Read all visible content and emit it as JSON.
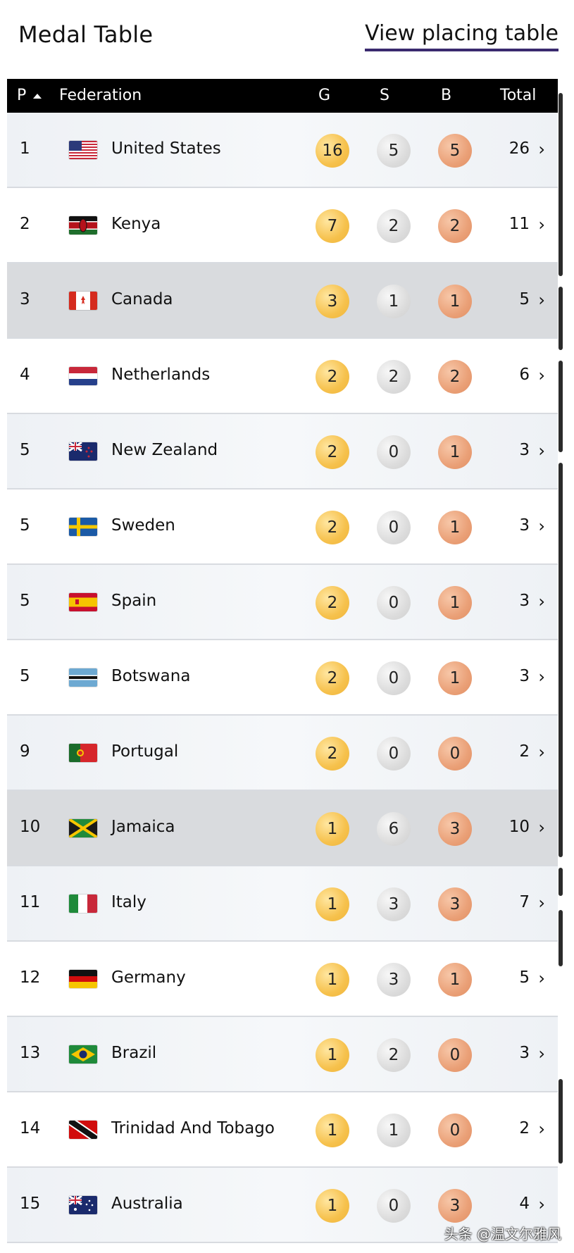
{
  "header": {
    "title": "Medal Table",
    "link": "View placing table"
  },
  "table": {
    "columns": [
      "P",
      "Federation",
      "G",
      "S",
      "B",
      "Total"
    ],
    "rows": [
      {
        "p": "1",
        "name": "United States",
        "flag": "us",
        "g": "16",
        "s": "5",
        "b": "5",
        "total": "26",
        "bg": "tint"
      },
      {
        "p": "2",
        "name": "Kenya",
        "flag": "ke",
        "g": "7",
        "s": "2",
        "b": "2",
        "total": "11",
        "bg": "white"
      },
      {
        "p": "3",
        "name": "Canada",
        "flag": "ca",
        "g": "3",
        "s": "1",
        "b": "1",
        "total": "5",
        "bg": "hl"
      },
      {
        "p": "4",
        "name": "Netherlands",
        "flag": "nl",
        "g": "2",
        "s": "2",
        "b": "2",
        "total": "6",
        "bg": "white"
      },
      {
        "p": "5",
        "name": "New Zealand",
        "flag": "nz",
        "g": "2",
        "s": "0",
        "b": "1",
        "total": "3",
        "bg": "tint"
      },
      {
        "p": "5",
        "name": "Sweden",
        "flag": "se",
        "g": "2",
        "s": "0",
        "b": "1",
        "total": "3",
        "bg": "white"
      },
      {
        "p": "5",
        "name": "Spain",
        "flag": "es",
        "g": "2",
        "s": "0",
        "b": "1",
        "total": "3",
        "bg": "tint"
      },
      {
        "p": "5",
        "name": "Botswana",
        "flag": "bw",
        "g": "2",
        "s": "0",
        "b": "1",
        "total": "3",
        "bg": "white"
      },
      {
        "p": "9",
        "name": "Portugal",
        "flag": "pt",
        "g": "2",
        "s": "0",
        "b": "0",
        "total": "2",
        "bg": "tint"
      },
      {
        "p": "10",
        "name": "Jamaica",
        "flag": "jm",
        "g": "1",
        "s": "6",
        "b": "3",
        "total": "10",
        "bg": "hl"
      },
      {
        "p": "11",
        "name": "Italy",
        "flag": "it",
        "g": "1",
        "s": "3",
        "b": "3",
        "total": "7",
        "bg": "tint"
      },
      {
        "p": "12",
        "name": "Germany",
        "flag": "de",
        "g": "1",
        "s": "3",
        "b": "1",
        "total": "5",
        "bg": "white"
      },
      {
        "p": "13",
        "name": "Brazil",
        "flag": "br",
        "g": "1",
        "s": "2",
        "b": "0",
        "total": "3",
        "bg": "tint"
      },
      {
        "p": "14",
        "name": "Trinidad And Tobago",
        "flag": "tt",
        "g": "1",
        "s": "1",
        "b": "0",
        "total": "2",
        "bg": "white"
      },
      {
        "p": "15",
        "name": "Australia",
        "flag": "au",
        "g": "1",
        "s": "0",
        "b": "3",
        "total": "4",
        "bg": "tint"
      }
    ]
  },
  "icons": {
    "sort": "sort-ascending-icon",
    "chevron": "chevron-right-icon"
  },
  "colors": {
    "header_bg": "#000000",
    "gold": "#f6c14c",
    "silver": "#dcdcdc",
    "bronze": "#eaa077",
    "link_underline": "#3a2a6e"
  },
  "watermark": "头条 @温文尔雅风"
}
